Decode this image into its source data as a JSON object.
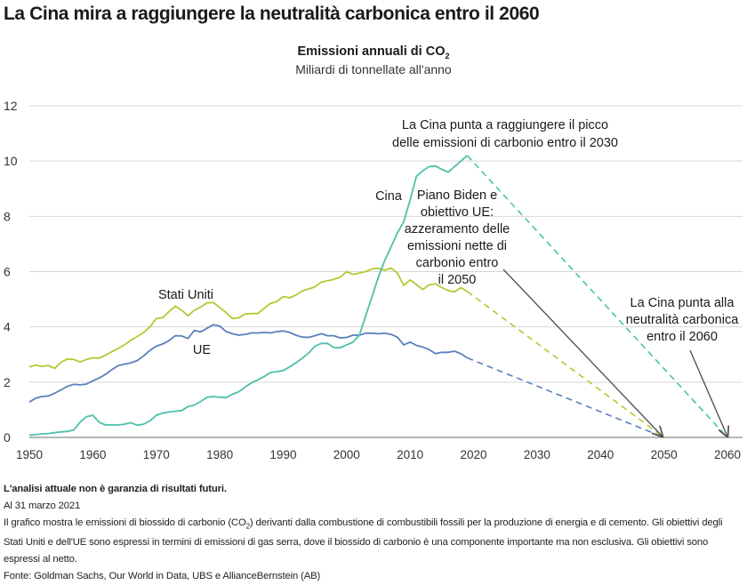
{
  "page_title": "La Cina mira a raggiungere la neutralità carbonica entro il 2060",
  "chart_header": {
    "title_prefix": "Emissioni annuali di CO",
    "title_subscript": "2",
    "subtitle": "Miliardi di tonnellate all'anno"
  },
  "colors": {
    "china": "#4dbfab",
    "usa": "#b5c832",
    "eu": "#5b7fbd",
    "arrow": "#555555",
    "grid": "#d6d6d6",
    "axis": "#8a8a8a"
  },
  "chart_data": {
    "type": "line",
    "title": "Emissioni annuali di CO2",
    "subtitle": "Miliardi di tonnellate all'anno",
    "xlabel": "",
    "ylabel": "",
    "xlim": [
      1950,
      2060
    ],
    "ylim": [
      0,
      12
    ],
    "grid": true,
    "x_ticks": [
      "1950",
      "1960",
      "1970",
      "1980",
      "1990",
      "2000",
      "2010",
      "2020",
      "2030",
      "2040",
      "2050",
      "2060"
    ],
    "y_ticks": [
      "0",
      "2",
      "4",
      "6",
      "8",
      "10",
      "12"
    ],
    "x_start": 1950,
    "series": [
      {
        "name": "Stati Uniti",
        "key": "usa",
        "values": [
          2.55,
          2.62,
          2.57,
          2.6,
          2.5,
          2.72,
          2.84,
          2.82,
          2.73,
          2.82,
          2.88,
          2.87,
          2.98,
          3.1,
          3.22,
          3.35,
          3.52,
          3.65,
          3.8,
          4.0,
          4.3,
          4.33,
          4.55,
          4.75,
          4.6,
          4.4,
          4.6,
          4.72,
          4.87,
          4.88,
          4.7,
          4.52,
          4.3,
          4.33,
          4.47,
          4.48,
          4.48,
          4.67,
          4.85,
          4.92,
          5.1,
          5.05,
          5.15,
          5.3,
          5.37,
          5.45,
          5.62,
          5.67,
          5.72,
          5.8,
          6.0,
          5.9,
          5.95,
          6.0,
          6.1,
          6.12,
          6.05,
          6.13,
          5.95,
          5.5,
          5.7,
          5.53,
          5.35,
          5.52,
          5.56,
          5.42,
          5.31,
          5.27,
          5.42,
          5.28
        ],
        "projection": {
          "from": [
            2019,
            5.28
          ],
          "to": [
            2050,
            0
          ]
        }
      },
      {
        "name": "UE",
        "key": "eu",
        "values": [
          1.28,
          1.42,
          1.48,
          1.5,
          1.6,
          1.72,
          1.85,
          1.92,
          1.9,
          1.93,
          2.05,
          2.15,
          2.28,
          2.45,
          2.6,
          2.65,
          2.7,
          2.78,
          2.95,
          3.15,
          3.3,
          3.38,
          3.5,
          3.68,
          3.67,
          3.58,
          3.87,
          3.82,
          3.95,
          4.08,
          4.03,
          3.83,
          3.75,
          3.7,
          3.73,
          3.78,
          3.78,
          3.8,
          3.78,
          3.83,
          3.85,
          3.8,
          3.7,
          3.63,
          3.62,
          3.68,
          3.75,
          3.68,
          3.68,
          3.6,
          3.62,
          3.7,
          3.7,
          3.77,
          3.77,
          3.75,
          3.77,
          3.73,
          3.63,
          3.35,
          3.45,
          3.33,
          3.27,
          3.18,
          3.03,
          3.08,
          3.08,
          3.12,
          3.03,
          2.88
        ],
        "projection": {
          "from": [
            2019,
            2.88
          ],
          "to": [
            2050,
            0
          ]
        }
      },
      {
        "name": "Cina",
        "key": "china",
        "values": [
          0.08,
          0.1,
          0.13,
          0.14,
          0.17,
          0.2,
          0.22,
          0.27,
          0.55,
          0.75,
          0.8,
          0.55,
          0.45,
          0.45,
          0.45,
          0.48,
          0.53,
          0.44,
          0.48,
          0.6,
          0.8,
          0.88,
          0.92,
          0.95,
          0.97,
          1.12,
          1.17,
          1.3,
          1.45,
          1.48,
          1.45,
          1.44,
          1.56,
          1.65,
          1.82,
          1.98,
          2.08,
          2.2,
          2.35,
          2.38,
          2.42,
          2.55,
          2.7,
          2.87,
          3.05,
          3.3,
          3.4,
          3.4,
          3.25,
          3.25,
          3.35,
          3.45,
          3.7,
          4.4,
          5.1,
          5.8,
          6.4,
          6.9,
          7.4,
          7.8,
          8.6,
          9.45,
          9.65,
          9.8,
          9.82,
          9.7,
          9.6,
          9.8,
          10.0,
          10.2
        ],
        "projection": {
          "from": [
            2019,
            10.2
          ],
          "to": [
            2060,
            0
          ]
        }
      }
    ],
    "series_labels": {
      "usa": "Stati Uniti",
      "eu": "UE",
      "china": "Cina"
    },
    "annotations": {
      "china_peak": [
        "La Cina punta a raggiungere il picco",
        "delle emissioni di carbonio entro il 2030"
      ],
      "biden_eu": [
        "Piano Biden e",
        "obiettivo UE:",
        "azzeramento delle",
        "emissioni nette di",
        "carbonio entro",
        "il 2050"
      ],
      "china_neutral": [
        "La Cina punta alla",
        "neutralità carbonica",
        "entro il 2060"
      ]
    }
  },
  "footer": {
    "disclaimer": "L'analisi attuale non è garanzia di risultati futuri.",
    "date": "Al 31 marzo 2021",
    "note_part1": "Il grafico mostra le emissioni di biossido di carbonio (CO",
    "note_sub": "2",
    "note_part2": ") derivanti dalla combustione di combustibili fossili per la produzione di energia e di cemento. Gli obiettivi degli Stati Uniti e dell'UE sono espressi in termini di emissioni di gas serra, dove il biossido di carbonio è una componente importante ma non esclusiva. Gli obiettivi sono espressi al netto.",
    "source": "Fonte: Goldman Sachs, Our World in Data, UBS e AllianceBernstein (AB)"
  }
}
